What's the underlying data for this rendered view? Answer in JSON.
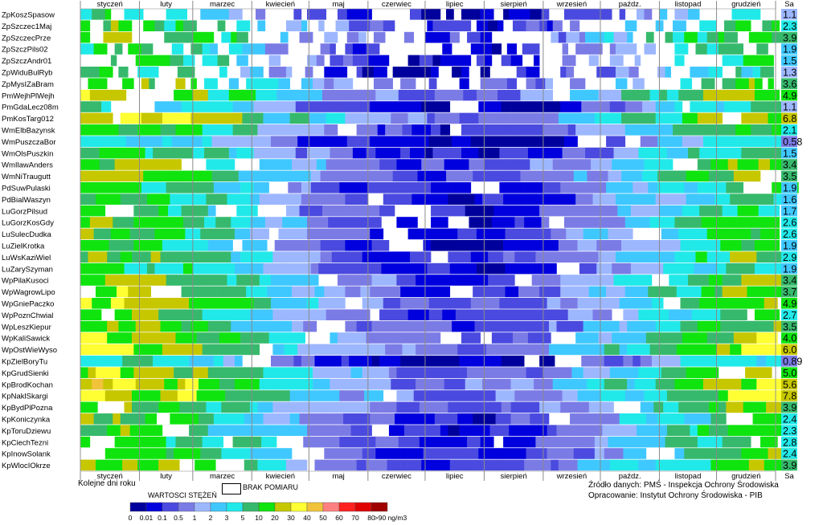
{
  "chart_data": {
    "type": "heatmap",
    "stations": [
      "ZpKoszSpasow",
      "ZpSzczec1Maj",
      "ZpSzczecPrze",
      "ZpSzczPils02",
      "ZpSzczAndr01",
      "ZpWiduBulRyb",
      "ZpMysIZaBram",
      "PmWejhPlWejh",
      "PmGdaLecz08m",
      "PmKosTarg012",
      "WmElbBazynsk",
      "WmPuszczaBor",
      "WmOlsPuszkin",
      "WmIlawAnders",
      "WmNiTraugutt",
      "PdSuwPulaski",
      "PdBialWaszyn",
      "LuGorzPilsud",
      "LuGorzKosGdy",
      "LuSulecDudka",
      "LuZielKrotka",
      "LuWsKaziWiel",
      "LuZarySzyman",
      "WpPilaKusoci",
      "WpWagrowLipo",
      "WpGniePaczko",
      "WpPoznChwial",
      "WpLeszKiepur",
      "WpKaliSawick",
      "WpOstWieWyso",
      "KpZielBoryTu",
      "KpGrudSienki",
      "KpBrodKochan",
      "KpNaklSkargi",
      "KpBydPlPozna",
      "KpKoniczynka",
      "KpToruDziewu",
      "KpCiechTezni",
      "KpInowSolank",
      "KpWlocIOkrze"
    ],
    "sa_values": [
      "1.1",
      "2.3",
      "3.9",
      "1.9",
      "1.5",
      "1.3",
      "3.6",
      "4.9",
      "1.1",
      "6.8",
      "2.1",
      "0.58",
      "1.5",
      "3.4",
      "3.5",
      "1.9",
      "1.6",
      "1.7",
      "2.6",
      "2.6",
      "1.9",
      "2.9",
      "1.9",
      "3.4",
      "3.7",
      "4.9",
      "2.7",
      "3.5",
      "4.0",
      "6.0",
      "0.89",
      "5.0",
      "5.6",
      "7.8",
      "3.9",
      "2.4",
      "2.3",
      "2.8",
      "2.4",
      "3.9"
    ],
    "sa_level": [
      4,
      6,
      7,
      5,
      5,
      4,
      7,
      8,
      4,
      9,
      6,
      3,
      5,
      7,
      7,
      5,
      5,
      5,
      6,
      6,
      5,
      6,
      5,
      7,
      7,
      8,
      6,
      7,
      8,
      9,
      3,
      8,
      9,
      9,
      7,
      6,
      6,
      6,
      6,
      7
    ],
    "months": [
      "styczeń",
      "luty",
      "marzec",
      "kwiecień",
      "maj",
      "czerwiec",
      "lipiec",
      "sierpień",
      "wrzesień",
      "paźdz.",
      "listopad",
      "grudzień"
    ],
    "month_days": [
      31,
      28,
      31,
      30,
      31,
      30,
      31,
      31,
      30,
      31,
      30,
      31
    ],
    "sa_header": "Sa",
    "x_axis_label": "Kolejne dni roku",
    "legend": {
      "title": "WARTOSCI STĘŻEŃ",
      "no_data_label": "BRAK POMIARU",
      "bins": [
        {
          "label": "0",
          "color": "#00009c"
        },
        {
          "label": "0.01",
          "color": "#0000de"
        },
        {
          "label": "0.1",
          "color": "#4a4ae0"
        },
        {
          "label": "0.5",
          "color": "#7b7be6"
        },
        {
          "label": "1",
          "color": "#9db7ff"
        },
        {
          "label": "2",
          "color": "#3fc8ff"
        },
        {
          "label": "3",
          "color": "#21e9e9"
        },
        {
          "label": "5",
          "color": "#36b96c"
        },
        {
          "label": "10",
          "color": "#0fe40f"
        },
        {
          "label": "20",
          "color": "#c7c700"
        },
        {
          "label": "30",
          "color": "#ffff33"
        },
        {
          "label": "40",
          "color": "#f0c33a"
        },
        {
          "label": "50",
          "color": "#ff8080"
        },
        {
          "label": "60",
          "color": "#ff2020"
        },
        {
          "label": "70",
          "color": "#e00000"
        },
        {
          "label": "80",
          "color": "#a00000"
        },
        {
          "label": ">90 ng/m3",
          "color": "#600000"
        }
      ]
    }
  },
  "footer": {
    "source_line": "Źródło danych: PMŚ - Inspekcja Ochrony Środowiska",
    "author_line": "Opracowanie: Instytut Ochrony Środowiska - PIB"
  }
}
